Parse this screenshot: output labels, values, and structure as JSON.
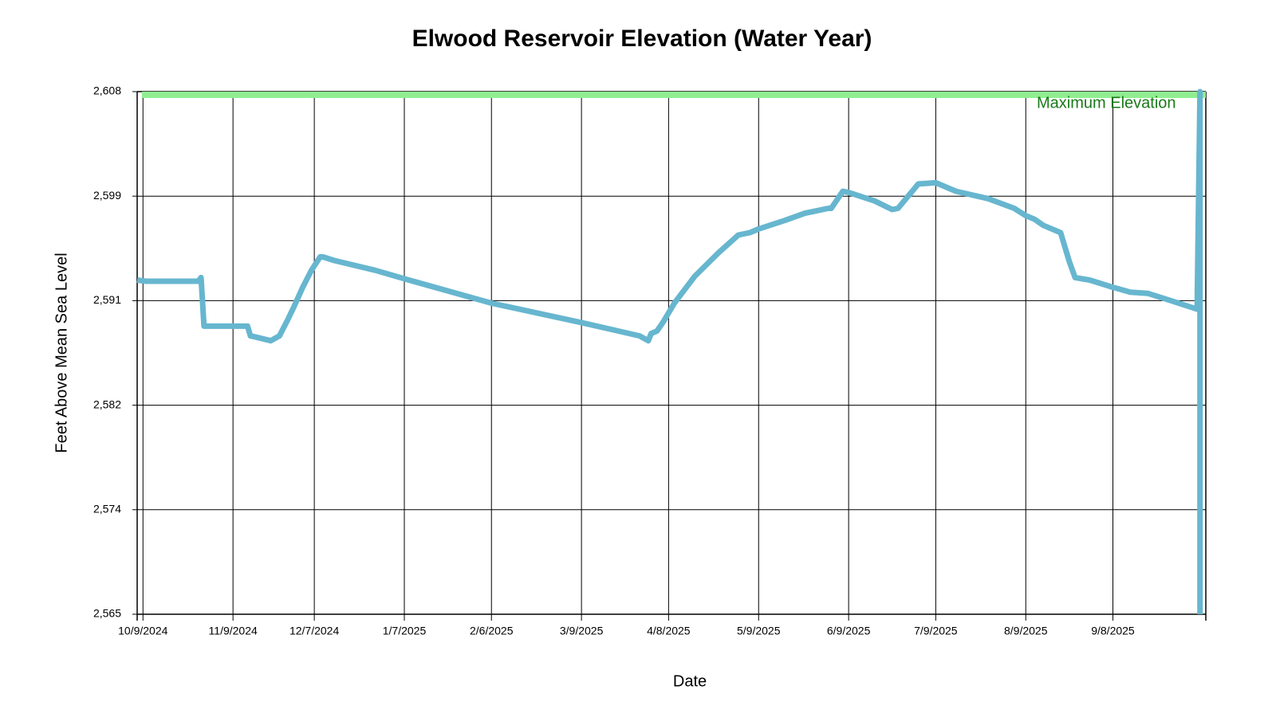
{
  "chart_data": {
    "type": "line",
    "title": "Elwood Reservoir Elevation (Water Year)",
    "x_label": "Date",
    "y_label": "Feet Above Mean Sea Level",
    "xlim": [
      "2024-10-07",
      "2025-10-10"
    ],
    "ylim": [
      2565,
      2608
    ],
    "xticks": [
      {
        "value": "2024-10-09",
        "label": "10/9/2024"
      },
      {
        "value": "2024-11-09",
        "label": "11/9/2024"
      },
      {
        "value": "2024-12-07",
        "label": "12/7/2024"
      },
      {
        "value": "2025-01-07",
        "label": "1/7/2025"
      },
      {
        "value": "2025-02-06",
        "label": "2/6/2025"
      },
      {
        "value": "2025-03-09",
        "label": "3/9/2025"
      },
      {
        "value": "2025-04-08",
        "label": "4/8/2025"
      },
      {
        "value": "2025-05-09",
        "label": "5/9/2025"
      },
      {
        "value": "2025-06-09",
        "label": "6/9/2025"
      },
      {
        "value": "2025-07-09",
        "label": "7/9/2025"
      },
      {
        "value": "2025-08-09",
        "label": "8/9/2025"
      },
      {
        "value": "2025-09-08",
        "label": "9/8/2025"
      }
    ],
    "yticks": [
      {
        "value": 2565,
        "label": "2,565"
      },
      {
        "value": 2573.6,
        "label": "2,574"
      },
      {
        "value": 2582.2,
        "label": "2,582"
      },
      {
        "value": 2590.8,
        "label": "2,591"
      },
      {
        "value": 2599.4,
        "label": "2,599"
      },
      {
        "value": 2608,
        "label": "2,608"
      }
    ],
    "grid": true,
    "annotations": [
      {
        "text": "Maximum Elevation",
        "value": 2608,
        "color": "#90ee90",
        "text_color": "#1a7a1a"
      }
    ],
    "series": [
      {
        "color": "#67b6cf",
        "x": [
          "2024-10-07",
          "2024-10-10",
          "2024-10-28",
          "2024-10-29",
          "2024-10-30",
          "2024-10-31",
          "2024-11-13",
          "2024-11-14",
          "2024-11-15",
          "2024-11-17",
          "2024-11-22",
          "2024-11-25",
          "2024-11-28",
          "2024-11-30",
          "2024-12-03",
          "2024-12-06",
          "2024-12-09",
          "2024-12-10",
          "2024-12-14",
          "2024-12-28",
          "2025-01-07",
          "2025-02-06",
          "2025-03-09",
          "2025-03-29",
          "2025-04-01",
          "2025-04-02",
          "2025-04-04",
          "2025-04-06",
          "2025-04-08",
          "2025-04-10",
          "2025-04-17",
          "2025-04-25",
          "2025-05-02",
          "2025-05-06",
          "2025-05-09",
          "2025-05-18",
          "2025-05-25",
          "2025-06-02",
          "2025-06-03",
          "2025-06-07",
          "2025-06-09",
          "2025-06-18",
          "2025-06-24",
          "2025-06-26",
          "2025-07-03",
          "2025-07-09",
          "2025-07-16",
          "2025-07-27",
          "2025-08-05",
          "2025-08-09",
          "2025-08-12",
          "2025-08-15",
          "2025-08-21",
          "2025-08-24",
          "2025-08-26",
          "2025-08-31",
          "2025-09-08",
          "2025-09-14",
          "2025-09-20",
          "2025-09-28",
          "2025-10-07",
          "2025-10-08",
          "2025-10-08"
        ],
        "values": [
          2592.5,
          2592.4,
          2592.4,
          2592.7,
          2588.7,
          2588.7,
          2588.7,
          2588.7,
          2587.9,
          2587.8,
          2587.5,
          2587.9,
          2589.3,
          2590.3,
          2591.9,
          2593.3,
          2594.4,
          2594.4,
          2594.1,
          2593.3,
          2592.6,
          2590.6,
          2589.0,
          2587.9,
          2587.5,
          2588.1,
          2588.3,
          2589.0,
          2589.8,
          2590.6,
          2592.8,
          2594.7,
          2596.2,
          2596.4,
          2596.7,
          2597.4,
          2598.0,
          2598.4,
          2598.4,
          2599.8,
          2599.7,
          2599.0,
          2598.3,
          2598.4,
          2600.4,
          2600.5,
          2599.8,
          2599.2,
          2598.4,
          2597.8,
          2597.5,
          2597.0,
          2596.4,
          2594.0,
          2592.7,
          2592.5,
          2591.9,
          2591.5,
          2591.4,
          2590.8,
          2590.1,
          2608,
          2565
        ]
      }
    ]
  }
}
